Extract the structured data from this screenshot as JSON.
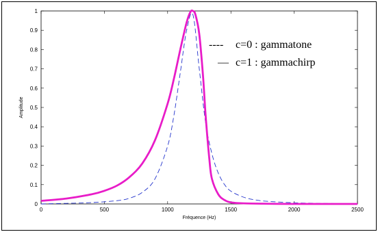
{
  "chart_data": {
    "type": "line",
    "xlabel": "Fréquence (Hz)",
    "ylabel": "Amplitude",
    "xlim": [
      0,
      2500
    ],
    "ylim": [
      0,
      1
    ],
    "x_ticks": [
      "0",
      "500",
      "1000",
      "1500",
      "2000",
      "2500"
    ],
    "y_ticks": [
      "0",
      "0.1",
      "0.2",
      "0.3",
      "0.4",
      "0.5",
      "0.6",
      "0.7",
      "0.8",
      "0.9",
      "1"
    ],
    "grid": false,
    "legend": {
      "placement": "top-right",
      "entries": [
        {
          "marker": "----",
          "text": "c=0 :  gammatone"
        },
        {
          "marker": "—",
          "text": "c=1 :  gammachirp"
        }
      ]
    },
    "series": [
      {
        "style": "dashed",
        "color": "#2233cc",
        "x": [
          0,
          200,
          400,
          600,
          700,
          800,
          900,
          1000,
          1050,
          1100,
          1150,
          1200,
          1250,
          1300,
          1350,
          1400,
          1450,
          1500,
          1600,
          1700,
          1800,
          2000,
          2200,
          2500
        ],
        "y": [
          0.0,
          0.003,
          0.007,
          0.017,
          0.03,
          0.06,
          0.13,
          0.3,
          0.46,
          0.68,
          0.9,
          0.98,
          0.7,
          0.42,
          0.26,
          0.16,
          0.1,
          0.066,
          0.035,
          0.02,
          0.013,
          0.006,
          0.003,
          0.001
        ]
      },
      {
        "style": "solid",
        "color": "#e81cc8",
        "x": [
          0,
          200,
          400,
          500,
          600,
          700,
          800,
          900,
          1000,
          1050,
          1100,
          1150,
          1180,
          1200,
          1220,
          1250,
          1280,
          1300,
          1330,
          1350,
          1400,
          1450,
          1500,
          1600,
          1800,
          2000,
          2500
        ],
        "y": [
          0.016,
          0.028,
          0.05,
          0.068,
          0.095,
          0.14,
          0.21,
          0.33,
          0.52,
          0.65,
          0.8,
          0.94,
          0.995,
          1.0,
          0.98,
          0.88,
          0.66,
          0.46,
          0.23,
          0.13,
          0.05,
          0.02,
          0.008,
          0.003,
          0.001,
          0.0,
          0.0
        ]
      }
    ]
  }
}
